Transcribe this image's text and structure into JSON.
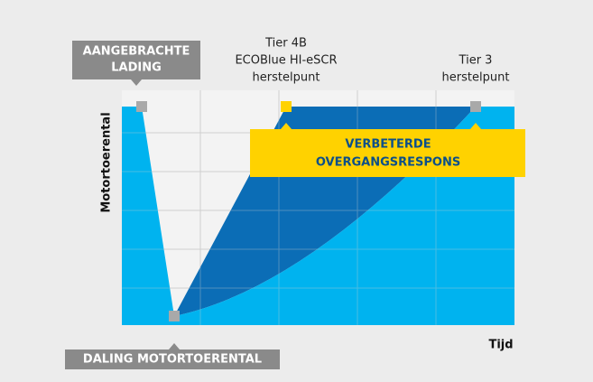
{
  "labels": {
    "applied_load": [
      "AANGEBRACHTE",
      "LADING"
    ],
    "tier4b": [
      "Tier 4B",
      "ECOBlue HI-eSCR",
      "herstelpunt"
    ],
    "tier3": [
      "Tier 3",
      "herstelpunt"
    ],
    "improved": [
      "VERBETERDE",
      "OVERGANGSRESPONS"
    ],
    "y_axis": "Motortoerental",
    "x_axis": "Tijd",
    "rpm_drop": "DALING MOTORTOERENTAL"
  }
}
